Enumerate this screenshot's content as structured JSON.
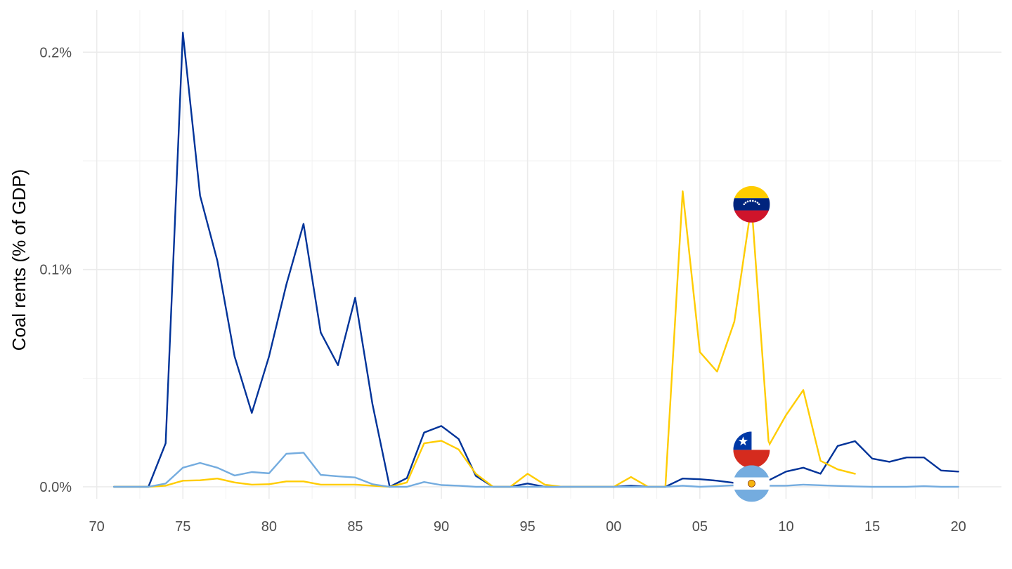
{
  "chart_data": {
    "type": "line",
    "title": "",
    "xlabel": "",
    "ylabel": "Coal rents (% of GDP)",
    "xlim": [
      1969.2,
      2022.5
    ],
    "ylim": [
      -0.0055,
      0.2195
    ],
    "x_ticks": [
      {
        "value": 1970,
        "label": "70"
      },
      {
        "value": 1975,
        "label": "75"
      },
      {
        "value": 1980,
        "label": "80"
      },
      {
        "value": 1985,
        "label": "85"
      },
      {
        "value": 1990,
        "label": "90"
      },
      {
        "value": 1995,
        "label": "95"
      },
      {
        "value": 2000,
        "label": "00"
      },
      {
        "value": 2005,
        "label": "05"
      },
      {
        "value": 2010,
        "label": "10"
      },
      {
        "value": 2015,
        "label": "15"
      },
      {
        "value": 2020,
        "label": "20"
      }
    ],
    "y_ticks": [
      {
        "value": 0.0,
        "label": "0.0%"
      },
      {
        "value": 0.1,
        "label": "0.1%"
      },
      {
        "value": 0.2,
        "label": "0.2%"
      }
    ],
    "grid": true,
    "legend": "none",
    "series": [
      {
        "color": "#003399",
        "flag": "chile-flag-icon",
        "flag_at": [
          2008,
          0.017
        ],
        "x": [
          1971,
          1972,
          1973,
          1974,
          1975,
          1976,
          1977,
          1978,
          1979,
          1980,
          1981,
          1982,
          1983,
          1984,
          1985,
          1986,
          1987,
          1988,
          1989,
          1990,
          1991,
          1992,
          1993,
          1994,
          1995,
          1996,
          1997,
          1998,
          1999,
          2000,
          2001,
          2002,
          2003,
          2004,
          2005,
          2006,
          2007,
          2008,
          2009,
          2010,
          2011,
          2012,
          2013,
          2014,
          2015,
          2016,
          2017,
          2018,
          2019,
          2020
        ],
        "values": [
          0,
          0,
          0,
          0.02,
          0.209,
          0.134,
          0.104,
          0.06,
          0.034,
          0.06,
          0.093,
          0.121,
          0.071,
          0.056,
          0.087,
          0.038,
          0,
          0.004,
          0.025,
          0.028,
          0.022,
          0.005,
          0,
          0,
          0.0015,
          0,
          0,
          0,
          0,
          0,
          0.0005,
          0,
          0,
          0.0038,
          0.0035,
          0.0028,
          0.0018,
          0.002,
          0.003,
          0.007,
          0.0088,
          0.006,
          0.0188,
          0.021,
          0.013,
          0.0115,
          0.0135,
          0.0135,
          0.0075,
          0.007
        ]
      },
      {
        "color": "#ffcc00",
        "flag": "venezuela-flag-icon",
        "flag_at": [
          2008,
          0.13
        ],
        "x": [
          1971,
          1972,
          1973,
          1974,
          1975,
          1976,
          1977,
          1978,
          1979,
          1980,
          1981,
          1982,
          1983,
          1984,
          1985,
          1986,
          1987,
          1988,
          1989,
          1990,
          1991,
          1992,
          1993,
          1994,
          1995,
          1996,
          1997,
          1998,
          1999,
          2000,
          2001,
          2002,
          2003,
          2004,
          2005,
          2006,
          2007,
          2008,
          2009,
          2010,
          2011,
          2012,
          2013,
          2014
        ],
        "values": [
          0,
          0,
          0,
          0.0005,
          0.0028,
          0.003,
          0.0038,
          0.002,
          0.001,
          0.0012,
          0.0025,
          0.0025,
          0.001,
          0.001,
          0.001,
          0.0005,
          0,
          0.002,
          0.02,
          0.0212,
          0.0172,
          0.006,
          0,
          0,
          0.006,
          0.001,
          0,
          0,
          0,
          0,
          0.0045,
          0,
          0,
          0.136,
          0.062,
          0.053,
          0.076,
          0.13,
          0.019,
          0.033,
          0.0445,
          0.012,
          0.008,
          0.006
        ]
      },
      {
        "color": "#74acdf",
        "flag": "argentina-flag-icon",
        "flag_at": [
          2008,
          0.0015
        ],
        "x": [
          1971,
          1972,
          1973,
          1974,
          1975,
          1976,
          1977,
          1978,
          1979,
          1980,
          1981,
          1982,
          1983,
          1984,
          1985,
          1986,
          1987,
          1988,
          1989,
          1990,
          1991,
          1992,
          1993,
          1994,
          1995,
          1996,
          1997,
          1998,
          1999,
          2000,
          2001,
          2002,
          2003,
          2004,
          2005,
          2006,
          2007,
          2008,
          2009,
          2010,
          2011,
          2012,
          2013,
          2014,
          2015,
          2016,
          2017,
          2018,
          2019,
          2020
        ],
        "values": [
          0,
          0,
          0,
          0.0015,
          0.0088,
          0.011,
          0.0088,
          0.0052,
          0.0068,
          0.0062,
          0.0152,
          0.0157,
          0.0055,
          0.0048,
          0.0043,
          0.0012,
          0,
          0,
          0.0022,
          0.0008,
          0.0005,
          0,
          0,
          0,
          0,
          0,
          0,
          0,
          0,
          0,
          0,
          0,
          0,
          0.0005,
          0,
          0.0003,
          0.0007,
          0.0012,
          0.0005,
          0.0005,
          0.001,
          0.0007,
          0.0004,
          0.0002,
          0,
          0,
          0,
          0.0003,
          0,
          0
        ]
      }
    ]
  }
}
